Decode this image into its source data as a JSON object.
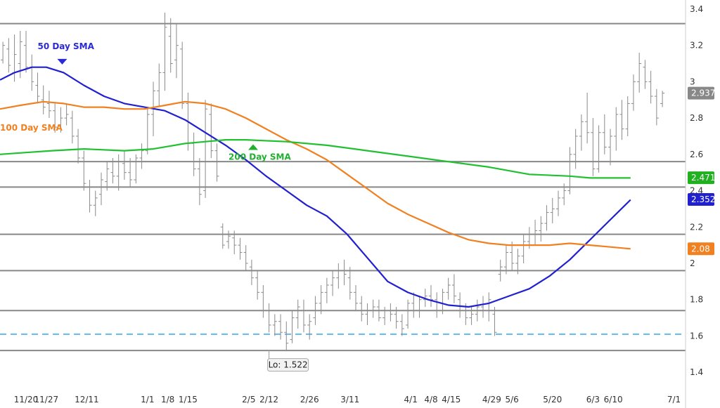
{
  "chart_data": {
    "type": "line",
    "title": "",
    "xlabel": "",
    "ylabel": "",
    "ylim": [
      1.3,
      3.45
    ],
    "y_ticks": [
      "3.4",
      "3.2",
      "3",
      "2.8",
      "2.6",
      "2.4",
      "2.2",
      "2",
      "1.8",
      "1.6",
      "1.4"
    ],
    "y_tick_values": [
      3.4,
      3.2,
      3.0,
      2.8,
      2.6,
      2.4,
      2.2,
      2.0,
      1.8,
      1.6,
      1.4
    ],
    "x_ticks": [
      "11/20",
      "11/27",
      "12/11",
      "1/1",
      "1/8",
      "1/15",
      "2/5",
      "2/12",
      "2/26",
      "3/11",
      "4/1",
      "4/8",
      "4/15",
      "4/29",
      "5/6",
      "5/20",
      "6/3",
      "6/10",
      "7/1"
    ],
    "x_tick_days": [
      -4,
      3,
      17,
      38,
      45,
      52,
      73,
      80,
      94,
      108,
      129,
      136,
      143,
      157,
      164,
      178,
      192,
      199,
      220
    ],
    "x_range_days": [
      -13,
      224
    ],
    "horizontal_levels": [
      3.32,
      2.56,
      2.42,
      2.16,
      1.96,
      1.74,
      1.52
    ],
    "support_level": 1.61,
    "series": [
      {
        "name": "50 Day SMA",
        "color": "#2020d0",
        "x": [
          -13,
          -8,
          -2,
          3,
          9,
          16,
          23,
          30,
          37,
          44,
          51,
          58,
          65,
          72,
          79,
          86,
          93,
          100,
          107,
          114,
          121,
          128,
          135,
          142,
          149,
          156,
          163,
          170,
          177,
          184,
          191,
          198,
          205
        ],
        "y": [
          3.01,
          3.05,
          3.08,
          3.08,
          3.05,
          2.98,
          2.92,
          2.88,
          2.86,
          2.84,
          2.79,
          2.72,
          2.65,
          2.57,
          2.48,
          2.4,
          2.32,
          2.26,
          2.16,
          2.03,
          1.9,
          1.84,
          1.8,
          1.77,
          1.76,
          1.78,
          1.82,
          1.86,
          1.93,
          2.02,
          2.13,
          2.24,
          2.35
        ]
      },
      {
        "name": "100 Day SMA",
        "color": "#f08020",
        "x": [
          -13,
          -6,
          2,
          9,
          16,
          23,
          30,
          37,
          44,
          51,
          58,
          65,
          72,
          79,
          86,
          93,
          100,
          107,
          114,
          121,
          128,
          135,
          142,
          149,
          156,
          163,
          170,
          177,
          184,
          191,
          198,
          205
        ],
        "y": [
          2.85,
          2.87,
          2.89,
          2.88,
          2.86,
          2.86,
          2.85,
          2.85,
          2.87,
          2.89,
          2.88,
          2.85,
          2.8,
          2.74,
          2.68,
          2.63,
          2.57,
          2.49,
          2.41,
          2.33,
          2.27,
          2.22,
          2.17,
          2.13,
          2.11,
          2.1,
          2.1,
          2.1,
          2.11,
          2.1,
          2.09,
          2.08
        ]
      },
      {
        "name": "200 Day SMA",
        "color": "#20c030",
        "x": [
          -13,
          -4,
          5,
          16,
          30,
          40,
          51,
          58,
          65,
          72,
          86,
          100,
          114,
          128,
          142,
          156,
          170,
          184,
          191,
          198,
          205
        ],
        "y": [
          2.6,
          2.61,
          2.62,
          2.63,
          2.62,
          2.63,
          2.66,
          2.67,
          2.68,
          2.68,
          2.67,
          2.65,
          2.62,
          2.59,
          2.56,
          2.53,
          2.49,
          2.48,
          2.47,
          2.47,
          2.47
        ]
      }
    ],
    "ohlc": [
      [
        -12,
        3.12,
        3.22,
        3.1,
        3.2
      ],
      [
        -10,
        3.18,
        3.24,
        3.05,
        3.09
      ],
      [
        -8,
        3.05,
        3.26,
        3.0,
        3.15
      ],
      [
        -6,
        3.1,
        3.28,
        3.02,
        3.22
      ],
      [
        -4,
        3.2,
        3.28,
        3.05,
        3.08
      ],
      [
        -2,
        3.08,
        3.15,
        2.95,
        3.0
      ],
      [
        0,
        2.98,
        3.05,
        2.88,
        2.92
      ],
      [
        2,
        2.9,
        2.98,
        2.82,
        2.86
      ],
      [
        4,
        2.88,
        2.95,
        2.8,
        2.84
      ],
      [
        6,
        2.84,
        2.88,
        2.72,
        2.75
      ],
      [
        8,
        2.76,
        2.86,
        2.72,
        2.8
      ],
      [
        10,
        2.8,
        2.88,
        2.76,
        2.82
      ],
      [
        12,
        2.8,
        2.84,
        2.66,
        2.7
      ],
      [
        14,
        2.7,
        2.74,
        2.55,
        2.58
      ],
      [
        16,
        2.58,
        2.62,
        2.4,
        2.44
      ],
      [
        18,
        2.42,
        2.46,
        2.28,
        2.32
      ],
      [
        20,
        2.32,
        2.4,
        2.26,
        2.36
      ],
      [
        22,
        2.38,
        2.5,
        2.32,
        2.46
      ],
      [
        24,
        2.45,
        2.56,
        2.4,
        2.52
      ],
      [
        26,
        2.5,
        2.58,
        2.44,
        2.48
      ],
      [
        28,
        2.48,
        2.6,
        2.4,
        2.56
      ],
      [
        30,
        2.55,
        2.62,
        2.46,
        2.5
      ],
      [
        32,
        2.5,
        2.58,
        2.42,
        2.46
      ],
      [
        34,
        2.46,
        2.6,
        2.44,
        2.58
      ],
      [
        36,
        2.58,
        2.66,
        2.52,
        2.62
      ],
      [
        38,
        2.62,
        2.85,
        2.6,
        2.82
      ],
      [
        40,
        2.82,
        3.0,
        2.7,
        2.95
      ],
      [
        42,
        2.95,
        3.1,
        2.86,
        3.05
      ],
      [
        44,
        3.05,
        3.38,
        2.95,
        3.3
      ],
      [
        46,
        3.25,
        3.35,
        3.05,
        3.1
      ],
      [
        48,
        3.12,
        3.32,
        3.02,
        3.2
      ],
      [
        50,
        3.18,
        3.22,
        2.85,
        2.88
      ],
      [
        52,
        2.88,
        2.94,
        2.62,
        2.66
      ],
      [
        54,
        2.66,
        2.72,
        2.48,
        2.52
      ],
      [
        56,
        2.52,
        2.58,
        2.32,
        2.38
      ],
      [
        58,
        2.4,
        2.9,
        2.36,
        2.85
      ],
      [
        60,
        2.82,
        2.88,
        2.58,
        2.62
      ],
      [
        62,
        2.62,
        2.66,
        2.45,
        2.48
      ],
      [
        64,
        2.2,
        2.22,
        2.08,
        2.1
      ],
      [
        66,
        2.12,
        2.18,
        2.08,
        2.15
      ],
      [
        68,
        2.14,
        2.18,
        2.05,
        2.1
      ],
      [
        70,
        2.1,
        2.14,
        2.02,
        2.06
      ],
      [
        72,
        2.06,
        2.1,
        1.96,
        2.0
      ],
      [
        74,
        1.98,
        2.02,
        1.88,
        1.92
      ],
      [
        76,
        1.92,
        1.96,
        1.8,
        1.84
      ],
      [
        78,
        1.84,
        1.88,
        1.7,
        1.74
      ],
      [
        80,
        1.74,
        1.78,
        1.62,
        1.66
      ],
      [
        82,
        1.66,
        1.72,
        1.6,
        1.68
      ],
      [
        84,
        1.68,
        1.72,
        1.58,
        1.62
      ],
      [
        86,
        1.62,
        1.68,
        1.52,
        1.56
      ],
      [
        88,
        1.58,
        1.74,
        1.56,
        1.7
      ],
      [
        90,
        1.7,
        1.8,
        1.64,
        1.76
      ],
      [
        92,
        1.74,
        1.8,
        1.62,
        1.66
      ],
      [
        94,
        1.66,
        1.72,
        1.58,
        1.68
      ],
      [
        96,
        1.7,
        1.82,
        1.66,
        1.78
      ],
      [
        98,
        1.78,
        1.88,
        1.72,
        1.84
      ],
      [
        100,
        1.84,
        1.92,
        1.78,
        1.88
      ],
      [
        102,
        1.88,
        1.96,
        1.82,
        1.92
      ],
      [
        104,
        1.92,
        2.0,
        1.86,
        1.96
      ],
      [
        106,
        1.96,
        2.02,
        1.88,
        1.94
      ],
      [
        108,
        1.92,
        1.98,
        1.8,
        1.84
      ],
      [
        110,
        1.84,
        1.88,
        1.74,
        1.78
      ],
      [
        112,
        1.78,
        1.82,
        1.68,
        1.72
      ],
      [
        114,
        1.72,
        1.78,
        1.66,
        1.74
      ],
      [
        116,
        1.74,
        1.8,
        1.7,
        1.76
      ],
      [
        118,
        1.76,
        1.8,
        1.68,
        1.7
      ],
      [
        120,
        1.7,
        1.76,
        1.66,
        1.74
      ],
      [
        122,
        1.74,
        1.78,
        1.68,
        1.72
      ],
      [
        124,
        1.72,
        1.76,
        1.64,
        1.68
      ],
      [
        126,
        1.68,
        1.72,
        1.6,
        1.64
      ],
      [
        128,
        1.66,
        1.8,
        1.64,
        1.78
      ],
      [
        130,
        1.78,
        1.84,
        1.7,
        1.74
      ],
      [
        132,
        1.74,
        1.82,
        1.7,
        1.8
      ],
      [
        134,
        1.8,
        1.86,
        1.76,
        1.82
      ],
      [
        136,
        1.82,
        1.88,
        1.76,
        1.8
      ],
      [
        138,
        1.8,
        1.84,
        1.7,
        1.74
      ],
      [
        140,
        1.74,
        1.86,
        1.72,
        1.84
      ],
      [
        142,
        1.84,
        1.92,
        1.8,
        1.88
      ],
      [
        144,
        1.88,
        1.94,
        1.78,
        1.82
      ],
      [
        146,
        1.8,
        1.84,
        1.7,
        1.74
      ],
      [
        148,
        1.74,
        1.78,
        1.66,
        1.7
      ],
      [
        150,
        1.7,
        1.76,
        1.66,
        1.72
      ],
      [
        152,
        1.72,
        1.8,
        1.68,
        1.76
      ],
      [
        154,
        1.76,
        1.82,
        1.7,
        1.74
      ],
      [
        156,
        1.74,
        1.84,
        1.68,
        1.8
      ],
      [
        158,
        1.72,
        1.76,
        1.6,
        1.62
      ],
      [
        160,
        1.94,
        2.02,
        1.9,
        1.98
      ],
      [
        162,
        1.98,
        2.1,
        1.94,
        2.06
      ],
      [
        164,
        2.06,
        2.12,
        1.96,
        2.0
      ],
      [
        166,
        2.0,
        2.08,
        1.94,
        2.04
      ],
      [
        168,
        2.04,
        2.16,
        2.0,
        2.12
      ],
      [
        170,
        2.12,
        2.2,
        2.08,
        2.16
      ],
      [
        172,
        2.16,
        2.24,
        2.1,
        2.18
      ],
      [
        174,
        2.18,
        2.26,
        2.12,
        2.22
      ],
      [
        176,
        2.22,
        2.32,
        2.18,
        2.28
      ],
      [
        178,
        2.28,
        2.36,
        2.22,
        2.3
      ],
      [
        180,
        2.3,
        2.4,
        2.26,
        2.36
      ],
      [
        182,
        2.36,
        2.44,
        2.32,
        2.4
      ],
      [
        184,
        2.4,
        2.64,
        2.38,
        2.6
      ],
      [
        186,
        2.6,
        2.74,
        2.52,
        2.7
      ],
      [
        188,
        2.7,
        2.82,
        2.62,
        2.78
      ],
      [
        190,
        2.78,
        2.94,
        2.66,
        2.72
      ],
      [
        192,
        2.72,
        2.8,
        2.48,
        2.52
      ],
      [
        194,
        2.52,
        2.76,
        2.5,
        2.72
      ],
      [
        196,
        2.72,
        2.82,
        2.6,
        2.64
      ],
      [
        198,
        2.64,
        2.74,
        2.54,
        2.7
      ],
      [
        200,
        2.7,
        2.86,
        2.62,
        2.82
      ],
      [
        202,
        2.82,
        2.9,
        2.68,
        2.74
      ],
      [
        204,
        2.74,
        2.92,
        2.7,
        2.88
      ],
      [
        206,
        2.88,
        3.04,
        2.84,
        3.0
      ],
      [
        208,
        3.0,
        3.16,
        2.94,
        3.1
      ],
      [
        210,
        3.08,
        3.12,
        2.96,
        3.0
      ],
      [
        212,
        3.0,
        3.06,
        2.88,
        2.92
      ],
      [
        214,
        2.92,
        2.96,
        2.76,
        2.8
      ],
      [
        216,
        2.88,
        2.95,
        2.86,
        2.937
      ]
    ],
    "last_values": [
      {
        "text": "2.937",
        "value": 2.937,
        "color": "#888888"
      },
      {
        "text": "2.471",
        "value": 2.471,
        "color": "#20b020"
      },
      {
        "text": "2.352",
        "value": 2.352,
        "color": "#2020d0"
      },
      {
        "text": "2.08",
        "value": 2.08,
        "color": "#f08020"
      }
    ],
    "annotations": [
      {
        "text": "50 Day SMA",
        "series": "50 Day SMA",
        "color": "#2b2bd6",
        "day": 0,
        "value": 3.18,
        "marker": "down",
        "marker_value": 3.11
      },
      {
        "text": "100 Day SMA",
        "series": "100 Day SMA",
        "color": "#f08020",
        "day": -13,
        "value": 2.73,
        "marker": "none"
      },
      {
        "text": "200 Day SMA",
        "series": "200 Day SMA",
        "color": "#20b030",
        "day": 66,
        "value": 2.57,
        "marker": "up",
        "marker_value": 2.64
      }
    ],
    "low_label": {
      "text": "Lo: 1.522",
      "day": 80,
      "value": 1.522
    }
  }
}
